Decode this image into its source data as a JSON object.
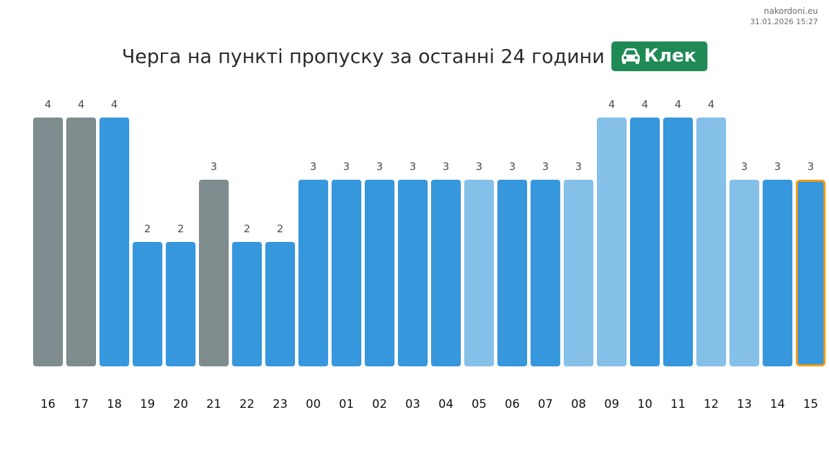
{
  "watermark": {
    "site": "nakordoni.eu",
    "timestamp": "31.01.2026 15:27"
  },
  "header": {
    "title": "Черга на пункті пропуску за останні 24 години",
    "checkpoint_name": "Клек",
    "checkpoint_icon": "car-icon",
    "badge_color": "#1f8a55"
  },
  "colors": {
    "gray": "#7f8c8d",
    "blue": "#3797dc",
    "light_blue": "#85c0e9",
    "highlight_border": "#f39c12"
  },
  "chart_data": {
    "type": "bar",
    "categories": [
      "16",
      "17",
      "18",
      "19",
      "20",
      "21",
      "22",
      "23",
      "00",
      "01",
      "02",
      "03",
      "04",
      "05",
      "06",
      "07",
      "08",
      "09",
      "10",
      "11",
      "12",
      "13",
      "14",
      "15"
    ],
    "values": [
      4,
      4,
      4,
      2,
      2,
      3,
      2,
      2,
      3,
      3,
      3,
      3,
      3,
      3,
      3,
      3,
      3,
      4,
      4,
      4,
      4,
      3,
      3,
      3
    ],
    "bar_colors": [
      "gray",
      "gray",
      "blue",
      "blue",
      "blue",
      "gray",
      "blue",
      "blue",
      "blue",
      "blue",
      "blue",
      "blue",
      "blue",
      "light_blue",
      "blue",
      "blue",
      "light_blue",
      "light_blue",
      "blue",
      "blue",
      "light_blue",
      "light_blue",
      "blue",
      "blue"
    ],
    "highlighted_category": "15",
    "ylim": [
      0,
      4
    ],
    "grid": false,
    "title": "",
    "xlabel": "",
    "ylabel": ""
  }
}
